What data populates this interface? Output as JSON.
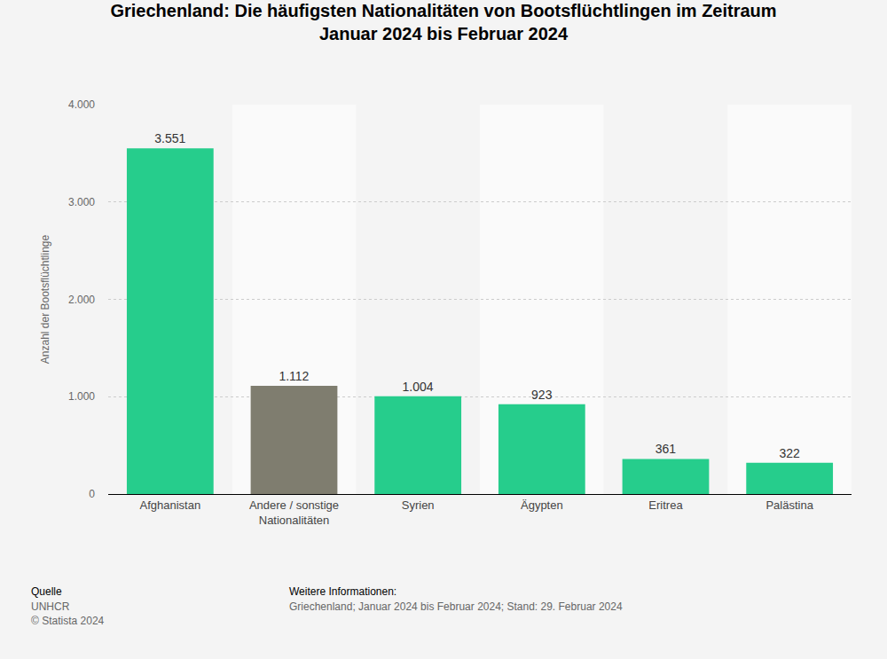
{
  "chart_data": {
    "type": "bar",
    "title": "Griechenland: Die häufigsten Nationalitäten von Bootsflüchtlingen im Zeitraum Januar 2024 bis Februar 2024",
    "y_label": "Anzahl der Bootsflüchtlinge",
    "categories": [
      "Afghanistan",
      "Andere / sonstige Nationalitäten",
      "Syrien",
      "Ägypten",
      "Eritrea",
      "Palästina"
    ],
    "values": [
      3551,
      1112,
      1004,
      923,
      361,
      322
    ],
    "value_labels": [
      "3.551",
      "1.112",
      "1.004",
      "923",
      "361",
      "322"
    ],
    "colors": [
      "#26cd8c",
      "#7f7d6f",
      "#26cd8c",
      "#26cd8c",
      "#26cd8c",
      "#26cd8c"
    ],
    "ylim": [
      0,
      4000
    ],
    "yticks": [
      0,
      {
        "value": 1000,
        "label": "1.000"
      },
      {
        "value": 2000,
        "label": "2.000"
      },
      {
        "value": 3000,
        "label": "3.000"
      },
      {
        "value": 4000,
        "label": "4.000"
      }
    ],
    "grid": true,
    "data_labels": true,
    "annotations": [
      "Quelle",
      "UNHCR",
      "© Statista 2024",
      "Weitere Informationen:",
      "Griechenland; Januar 2024 bis Februar 2024; Stand: 29. Februar 2024"
    ]
  }
}
